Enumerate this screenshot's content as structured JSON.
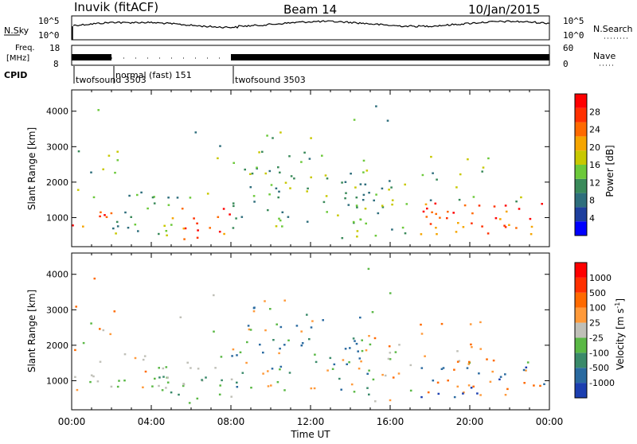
{
  "header": {
    "station": "Inuvik (fitACF)",
    "beam": "Beam 14",
    "date": "10/Jan/2015"
  },
  "noise_panel": {
    "left_label": "N.Sky",
    "right_label": "N.Search",
    "left_ticks": [
      "10^5",
      "10^0"
    ],
    "right_ticks": [
      "10^5",
      "10^0"
    ]
  },
  "freq_panel": {
    "left_label_1": "Freq.",
    "left_label_2": "[MHz]",
    "right_label": "Nave",
    "left_ticks": [
      "18",
      "8"
    ],
    "right_ticks": [
      "60",
      "0"
    ]
  },
  "cpid": {
    "label": "CPID",
    "modes": [
      {
        "name": "twofsound 3503",
        "start_hour": 0,
        "end_hour": 2.0
      },
      {
        "name": "normal (fast) 151",
        "start_hour": 2.0,
        "end_hour": 8.0
      },
      {
        "name": "twofsound 3503",
        "start_hour": 8.0,
        "end_hour": 24.0
      }
    ]
  },
  "chart_data": [
    {
      "type": "heatmap",
      "panel": "power",
      "ylabel": "Slant Range [km]",
      "y_ticks": [
        1000,
        2000,
        3000,
        4000
      ],
      "ylim": [
        180,
        4600
      ],
      "x_ticks": [
        "00:00",
        "04:00",
        "08:00",
        "12:00",
        "16:00",
        "20:00",
        "00:00"
      ],
      "xlim_hours": [
        0,
        24
      ],
      "colorbar": {
        "label": "Power [dB]",
        "ticks": [
          "28",
          "24",
          "20",
          "16",
          "12",
          "8",
          "4"
        ],
        "colors": [
          "#0000ff",
          "#1e3f9e",
          "#2e6e7c",
          "#3a8a5a",
          "#6cc93a",
          "#c8c800",
          "#f5a500",
          "#ff6a00",
          "#ff3000",
          "#ff0000"
        ]
      }
    },
    {
      "type": "heatmap",
      "panel": "velocity",
      "ylabel": "Slant Range [km]",
      "y_ticks": [
        1000,
        2000,
        3000,
        4000
      ],
      "ylim": [
        180,
        4600
      ],
      "x_ticks": [
        "00:00",
        "04:00",
        "08:00",
        "12:00",
        "16:00",
        "20:00",
        "00:00"
      ],
      "xlim_hours": [
        0,
        24
      ],
      "xlabel": "Time UT",
      "colorbar": {
        "label_main": "Velocity",
        "label_unit": "[m s",
        "label_exp": "-1",
        "label_close": "]",
        "ticks": [
          "1000",
          "500",
          "100",
          "25",
          "-25",
          "-100",
          "-500",
          "-1000"
        ],
        "colors": [
          "#1c3fb0",
          "#2a6aa0",
          "#3a8a6a",
          "#5ab845",
          "#c0c0b8",
          "#ff9a3a",
          "#ff6a00",
          "#ff3000",
          "#ff0000"
        ]
      }
    }
  ]
}
